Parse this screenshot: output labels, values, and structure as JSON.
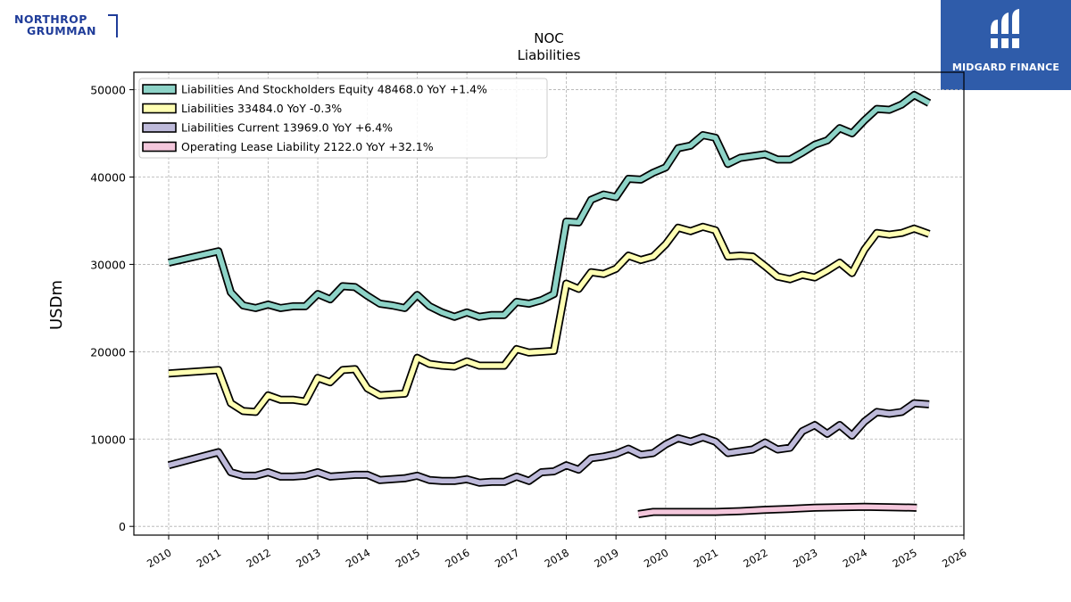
{
  "brand": {
    "left_logo_line1": "NORTHROP",
    "left_logo_line2": "GRUMMAN",
    "right_logo_text": "MIDGARD FINANCE"
  },
  "chart_data": {
    "type": "line",
    "title": "NOC",
    "subtitle": "Liabilities",
    "xlabel": "",
    "ylabel": "USDm",
    "xlim": [
      2009.3,
      2026.0
    ],
    "ylim": [
      -1000,
      52000
    ],
    "yticks": [
      0,
      10000,
      20000,
      30000,
      40000,
      50000
    ],
    "xticks": [
      2010,
      2011,
      2012,
      2013,
      2014,
      2015,
      2016,
      2017,
      2018,
      2019,
      2020,
      2021,
      2022,
      2023,
      2024,
      2025,
      2026
    ],
    "grid": true,
    "legend_position": "top-left",
    "series": [
      {
        "name": "Liabilities And Stockholders Equity",
        "legend_label": "Liabilities And Stockholders Equity  48468.0 YoY +1.4%",
        "color": "#8dd3c7",
        "points": [
          [
            2010.0,
            30200
          ],
          [
            2011.0,
            31500
          ],
          [
            2011.25,
            26800
          ],
          [
            2011.5,
            25300
          ],
          [
            2011.75,
            25000
          ],
          [
            2012.0,
            25400
          ],
          [
            2012.25,
            25000
          ],
          [
            2012.5,
            25200
          ],
          [
            2012.75,
            25200
          ],
          [
            2013.0,
            26600
          ],
          [
            2013.25,
            26000
          ],
          [
            2013.5,
            27500
          ],
          [
            2013.75,
            27400
          ],
          [
            2014.0,
            26400
          ],
          [
            2014.25,
            25500
          ],
          [
            2014.5,
            25300
          ],
          [
            2014.75,
            25000
          ],
          [
            2015.0,
            26500
          ],
          [
            2015.25,
            25200
          ],
          [
            2015.5,
            24500
          ],
          [
            2015.75,
            24000
          ],
          [
            2016.0,
            24500
          ],
          [
            2016.25,
            24000
          ],
          [
            2016.5,
            24200
          ],
          [
            2016.75,
            24200
          ],
          [
            2017.0,
            25700
          ],
          [
            2017.25,
            25500
          ],
          [
            2017.5,
            25900
          ],
          [
            2017.75,
            26600
          ],
          [
            2018.0,
            34900
          ],
          [
            2018.25,
            34800
          ],
          [
            2018.5,
            37400
          ],
          [
            2018.75,
            38000
          ],
          [
            2019.0,
            37700
          ],
          [
            2019.25,
            39800
          ],
          [
            2019.5,
            39700
          ],
          [
            2019.75,
            40500
          ],
          [
            2020.0,
            41100
          ],
          [
            2020.25,
            43300
          ],
          [
            2020.5,
            43600
          ],
          [
            2020.75,
            44800
          ],
          [
            2021.0,
            44500
          ],
          [
            2021.25,
            41500
          ],
          [
            2021.5,
            42200
          ],
          [
            2021.75,
            42400
          ],
          [
            2022.0,
            42600
          ],
          [
            2022.25,
            42000
          ],
          [
            2022.5,
            42000
          ],
          [
            2022.75,
            42800
          ],
          [
            2023.0,
            43700
          ],
          [
            2023.25,
            44200
          ],
          [
            2023.5,
            45600
          ],
          [
            2023.75,
            45000
          ],
          [
            2024.0,
            46500
          ],
          [
            2024.25,
            47800
          ],
          [
            2024.5,
            47700
          ],
          [
            2024.75,
            48300
          ],
          [
            2025.0,
            49400
          ],
          [
            2025.3,
            48468
          ]
        ]
      },
      {
        "name": "Liabilities",
        "legend_label": "Liabilities  33484.0 YoY -0.3%",
        "color": "#ffffb3",
        "points": [
          [
            2010.0,
            17500
          ],
          [
            2011.0,
            17900
          ],
          [
            2011.25,
            14100
          ],
          [
            2011.5,
            13200
          ],
          [
            2011.75,
            13100
          ],
          [
            2012.0,
            15000
          ],
          [
            2012.25,
            14500
          ],
          [
            2012.5,
            14500
          ],
          [
            2012.75,
            14300
          ],
          [
            2013.0,
            17000
          ],
          [
            2013.25,
            16500
          ],
          [
            2013.5,
            17900
          ],
          [
            2013.75,
            18000
          ],
          [
            2014.0,
            15800
          ],
          [
            2014.25,
            15000
          ],
          [
            2014.5,
            15100
          ],
          [
            2014.75,
            15200
          ],
          [
            2015.0,
            19300
          ],
          [
            2015.25,
            18600
          ],
          [
            2015.5,
            18400
          ],
          [
            2015.75,
            18300
          ],
          [
            2016.0,
            18900
          ],
          [
            2016.25,
            18400
          ],
          [
            2016.5,
            18400
          ],
          [
            2016.75,
            18400
          ],
          [
            2017.0,
            20300
          ],
          [
            2017.25,
            19900
          ],
          [
            2017.5,
            20000
          ],
          [
            2017.75,
            20100
          ],
          [
            2018.0,
            27800
          ],
          [
            2018.25,
            27200
          ],
          [
            2018.5,
            29100
          ],
          [
            2018.75,
            28900
          ],
          [
            2019.0,
            29500
          ],
          [
            2019.25,
            31000
          ],
          [
            2019.5,
            30500
          ],
          [
            2019.75,
            30900
          ],
          [
            2020.0,
            32300
          ],
          [
            2020.25,
            34200
          ],
          [
            2020.5,
            33800
          ],
          [
            2020.75,
            34300
          ],
          [
            2021.0,
            33900
          ],
          [
            2021.25,
            30900
          ],
          [
            2021.5,
            31000
          ],
          [
            2021.75,
            30900
          ],
          [
            2022.0,
            29800
          ],
          [
            2022.25,
            28600
          ],
          [
            2022.5,
            28300
          ],
          [
            2022.75,
            28800
          ],
          [
            2023.0,
            28500
          ],
          [
            2023.25,
            29300
          ],
          [
            2023.5,
            30200
          ],
          [
            2023.75,
            29000
          ],
          [
            2024.0,
            31700
          ],
          [
            2024.25,
            33600
          ],
          [
            2024.5,
            33400
          ],
          [
            2024.75,
            33600
          ],
          [
            2025.0,
            34100
          ],
          [
            2025.3,
            33484
          ]
        ]
      },
      {
        "name": "Liabilities Current",
        "legend_label": "Liabilities Current  13969.0 YoY +6.4%",
        "color": "#bebada",
        "points": [
          [
            2010.0,
            7000
          ],
          [
            2011.0,
            8500
          ],
          [
            2011.25,
            6200
          ],
          [
            2011.5,
            5800
          ],
          [
            2011.75,
            5800
          ],
          [
            2012.0,
            6200
          ],
          [
            2012.25,
            5700
          ],
          [
            2012.5,
            5700
          ],
          [
            2012.75,
            5800
          ],
          [
            2013.0,
            6200
          ],
          [
            2013.25,
            5700
          ],
          [
            2013.5,
            5800
          ],
          [
            2013.75,
            5900
          ],
          [
            2014.0,
            5900
          ],
          [
            2014.25,
            5300
          ],
          [
            2014.5,
            5400
          ],
          [
            2014.75,
            5500
          ],
          [
            2015.0,
            5800
          ],
          [
            2015.25,
            5300
          ],
          [
            2015.5,
            5200
          ],
          [
            2015.75,
            5200
          ],
          [
            2016.0,
            5400
          ],
          [
            2016.25,
            5000
          ],
          [
            2016.5,
            5100
          ],
          [
            2016.75,
            5100
          ],
          [
            2017.0,
            5700
          ],
          [
            2017.25,
            5200
          ],
          [
            2017.5,
            6200
          ],
          [
            2017.75,
            6300
          ],
          [
            2018.0,
            7000
          ],
          [
            2018.25,
            6500
          ],
          [
            2018.5,
            7800
          ],
          [
            2018.75,
            8000
          ],
          [
            2019.0,
            8300
          ],
          [
            2019.25,
            8900
          ],
          [
            2019.5,
            8200
          ],
          [
            2019.75,
            8400
          ],
          [
            2020.0,
            9400
          ],
          [
            2020.25,
            10100
          ],
          [
            2020.5,
            9700
          ],
          [
            2020.75,
            10200
          ],
          [
            2021.0,
            9700
          ],
          [
            2021.25,
            8400
          ],
          [
            2021.5,
            8600
          ],
          [
            2021.75,
            8800
          ],
          [
            2022.0,
            9600
          ],
          [
            2022.25,
            8800
          ],
          [
            2022.5,
            9000
          ],
          [
            2022.75,
            10900
          ],
          [
            2023.0,
            11600
          ],
          [
            2023.25,
            10600
          ],
          [
            2023.5,
            11600
          ],
          [
            2023.75,
            10400
          ],
          [
            2024.0,
            12000
          ],
          [
            2024.25,
            13100
          ],
          [
            2024.5,
            12900
          ],
          [
            2024.75,
            13100
          ],
          [
            2025.0,
            14100
          ],
          [
            2025.3,
            13969
          ]
        ]
      },
      {
        "name": "Operating Lease Liability",
        "legend_label": "Operating Lease Liability  2122.0 YoY +32.1%",
        "color": "#f4c7dc",
        "points": [
          [
            2019.45,
            1400
          ],
          [
            2019.75,
            1650
          ],
          [
            2020.0,
            1650
          ],
          [
            2020.5,
            1650
          ],
          [
            2021.0,
            1650
          ],
          [
            2021.5,
            1750
          ],
          [
            2022.0,
            1900
          ],
          [
            2022.5,
            2000
          ],
          [
            2023.0,
            2150
          ],
          [
            2023.5,
            2200
          ],
          [
            2024.0,
            2250
          ],
          [
            2024.5,
            2200
          ],
          [
            2025.0,
            2150
          ],
          [
            2025.05,
            2122
          ]
        ]
      }
    ]
  }
}
